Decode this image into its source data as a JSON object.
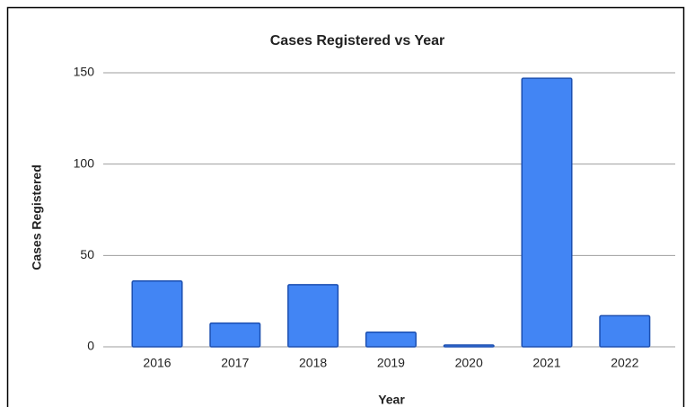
{
  "chart_data": {
    "type": "bar",
    "title": "Cases Registered vs Year",
    "x_label": "Year",
    "y_label": "Cases Registered",
    "categories": [
      "2016",
      "2017",
      "2018",
      "2019",
      "2020",
      "2021",
      "2022"
    ],
    "values": [
      36,
      13,
      34,
      8,
      1,
      147,
      17
    ],
    "color": "#4285f4",
    "ylim": [
      0,
      150
    ],
    "yticks": [
      0,
      50,
      100,
      150
    ],
    "grid": true
  }
}
